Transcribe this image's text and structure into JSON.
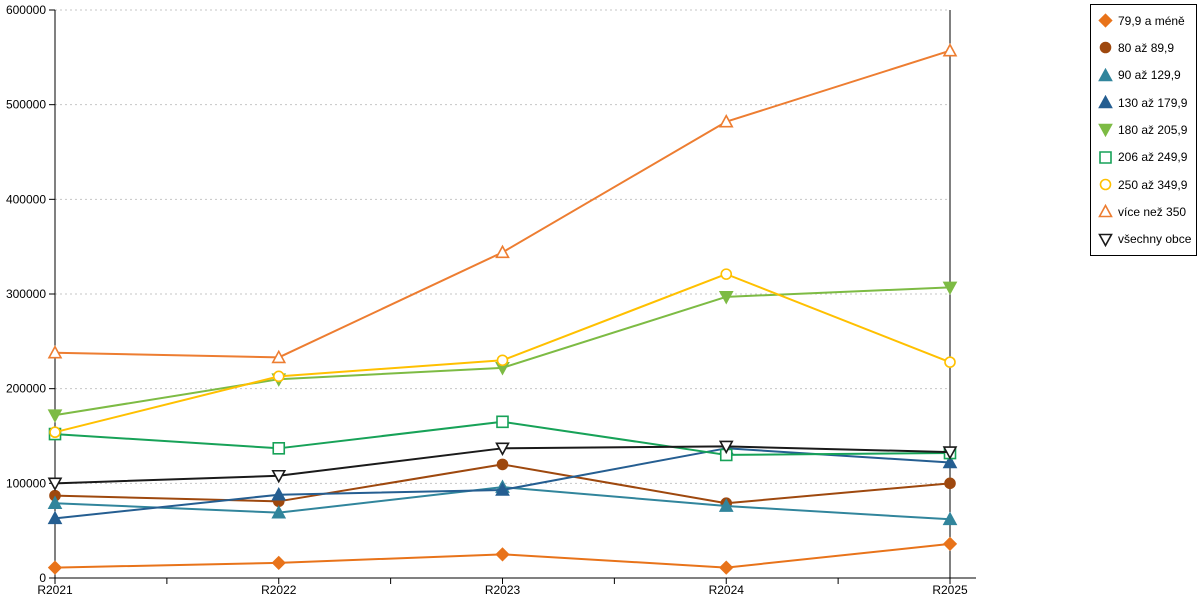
{
  "chart_data": {
    "type": "line",
    "title": "",
    "xlabel": "",
    "ylabel": "",
    "categories": [
      "R2021",
      "R2022",
      "R2023",
      "R2024",
      "R2025"
    ],
    "ylim": [
      0,
      600000
    ],
    "ytick_step": 100000,
    "ytick_labels": [
      "0",
      "100000",
      "200000",
      "300000",
      "400000",
      "500000",
      "600000"
    ],
    "grid": "horizontal-dashed",
    "legend_position": "outside-top-right",
    "series": [
      {
        "name": "79,9 a méně",
        "color": "#E8731A",
        "marker": "diamond",
        "filled": true,
        "values": [
          11000,
          16000,
          25000,
          11000,
          36000
        ]
      },
      {
        "name": "80 až 89,9",
        "color": "#9E480E",
        "marker": "circle",
        "filled": true,
        "values": [
          87000,
          81000,
          120000,
          79000,
          100000
        ]
      },
      {
        "name": "90 až 129,9",
        "color": "#31859C",
        "marker": "triangle-up",
        "filled": true,
        "values": [
          79000,
          69000,
          96000,
          76000,
          62000
        ]
      },
      {
        "name": "130 až 179,9",
        "color": "#255E91",
        "marker": "triangle-up",
        "filled": true,
        "values": [
          63000,
          88000,
          93000,
          137000,
          122000
        ]
      },
      {
        "name": "180 až 205,9",
        "color": "#7DBB44",
        "marker": "triangle-down",
        "filled": true,
        "values": [
          172000,
          210000,
          222000,
          297000,
          307000
        ]
      },
      {
        "name": "206 až 249,9",
        "color": "#17A258",
        "marker": "square",
        "filled": false,
        "values": [
          152000,
          137000,
          165000,
          130000,
          132000
        ]
      },
      {
        "name": "250 až 349,9",
        "color": "#FFC000",
        "marker": "circle",
        "filled": false,
        "values": [
          154000,
          213000,
          230000,
          321000,
          228000
        ]
      },
      {
        "name": "více než 350",
        "color": "#ED7D31",
        "marker": "triangle-up",
        "filled": false,
        "values": [
          238000,
          233000,
          344000,
          482000,
          557000
        ]
      },
      {
        "name": "všechny obce",
        "color": "#1A1A1A",
        "marker": "triangle-down",
        "filled": false,
        "values": [
          100000,
          108000,
          137000,
          139000,
          133000
        ]
      }
    ],
    "colors": {
      "grid": "#C6C6C6",
      "axis": "#000000",
      "background": "#FFFFFF"
    }
  }
}
